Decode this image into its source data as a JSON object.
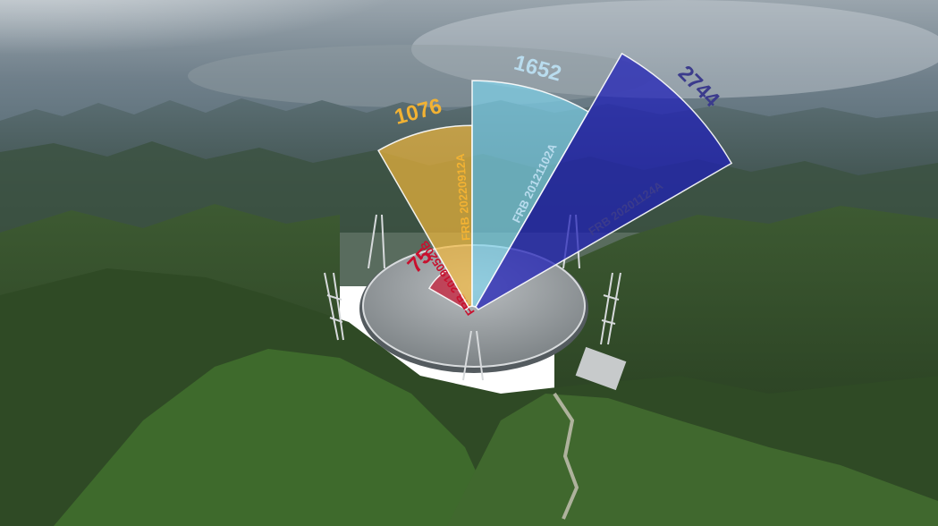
{
  "chart_data": {
    "type": "radial-bar",
    "max_value": 2744,
    "series": [
      {
        "name": "FRB 20190520B",
        "value": 75,
        "color": "#c8102e",
        "label_color": "#c8102e"
      },
      {
        "name": "FRB 20220912A",
        "value": 1076,
        "color": "#f6b93b",
        "label_color": "#f2b233"
      },
      {
        "name": "FRB 20121102A",
        "value": 1652,
        "color": "#7fd4ee",
        "label_color": "#b9dcee"
      },
      {
        "name": "FRB 20201124A",
        "value": 2744,
        "color": "#1f1fb8",
        "label_color": "#3b3b8c"
      }
    ]
  }
}
